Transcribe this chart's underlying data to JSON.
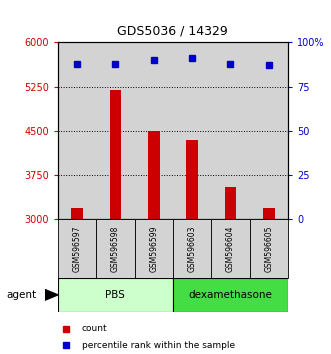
{
  "title": "GDS5036 / 14329",
  "samples": [
    "GSM596597",
    "GSM596598",
    "GSM596599",
    "GSM596603",
    "GSM596604",
    "GSM596605"
  ],
  "counts": [
    3200,
    5200,
    4500,
    4350,
    3550,
    3200
  ],
  "percentiles": [
    88,
    88,
    90,
    91,
    88,
    87
  ],
  "bar_color": "#cc0000",
  "dot_color": "#0000cc",
  "ylim_left": [
    3000,
    6000
  ],
  "yticks_left": [
    3000,
    3750,
    4500,
    5250,
    6000
  ],
  "ylim_right": [
    0,
    100
  ],
  "yticks_right": [
    0,
    25,
    50,
    75,
    100
  ],
  "yticklabels_right": [
    "0",
    "25",
    "50",
    "75",
    "100%"
  ],
  "grid_values": [
    3750,
    4500,
    5250
  ],
  "agent_label": "agent",
  "legend_count_label": "count",
  "legend_percentile_label": "percentile rank within the sample",
  "bg_color": "#ffffff",
  "sample_box_color": "#d3d3d3",
  "pbs_color": "#ccffcc",
  "dexa_color": "#44dd44",
  "title_fontsize": 9,
  "axis_fontsize": 7,
  "label_fontsize": 5.5
}
